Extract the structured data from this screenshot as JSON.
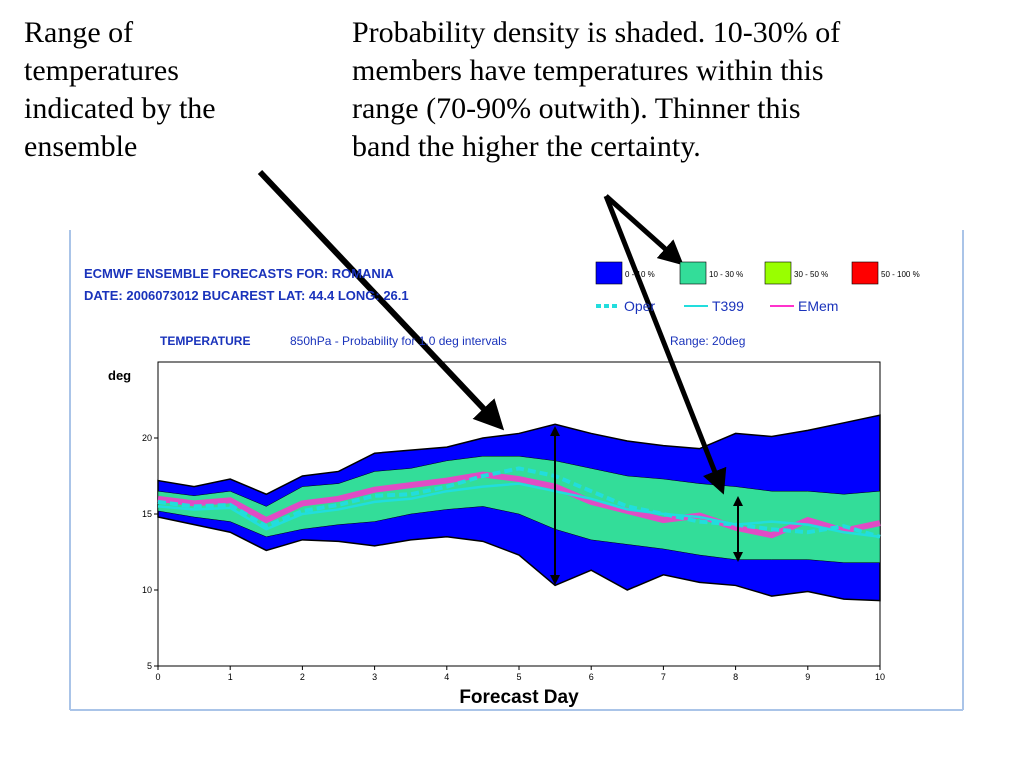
{
  "notes": {
    "left": [
      "Range of",
      "temperatures",
      "indicated by the",
      "ensemble"
    ],
    "right": [
      "Probability density is shaded. 10-30% of",
      "members have temperatures within this",
      "range (70-90% outwith). Thinner this",
      "band the higher the certainty."
    ]
  },
  "chart_data": {
    "type": "plume",
    "title": [
      "ECMWF ENSEMBLE FORECASTS FOR:  ROMANIA",
      "DATE: 2006073012  BUCAREST  LAT: 44.4  LONG: 26.1"
    ],
    "subtitle": [
      "TEMPERATURE",
      "850hPa - Probability for 1.0 deg intervals"
    ],
    "range_note": "Range: 20deg",
    "y_label": "deg",
    "x_label": "Forecast Day",
    "xlim": [
      0,
      10
    ],
    "xticks": [
      0,
      1,
      2,
      3,
      4,
      5,
      6,
      7,
      8,
      9,
      10
    ],
    "ylim": [
      5,
      25
    ],
    "yticks": [
      5,
      10,
      15,
      20
    ],
    "x": [
      0,
      0.5,
      1,
      1.5,
      2,
      2.5,
      3,
      3.5,
      4,
      4.5,
      5,
      5.5,
      6,
      6.5,
      7,
      7.5,
      8,
      8.5,
      9,
      9.5,
      10
    ],
    "bands": [
      {
        "name": "0 - 10 %",
        "color": "#0000ff",
        "upper": [
          17.2,
          16.8,
          17.3,
          16.3,
          17.5,
          17.8,
          19.0,
          19.2,
          19.4,
          20.0,
          20.3,
          20.9,
          20.3,
          19.8,
          19.5,
          19.3,
          20.3,
          20.1,
          20.5,
          21.0,
          21.5
        ],
        "lower": [
          14.8,
          14.3,
          13.8,
          12.6,
          13.3,
          13.2,
          12.9,
          13.3,
          13.5,
          13.2,
          12.3,
          10.3,
          11.3,
          10.0,
          11.0,
          10.5,
          10.3,
          9.6,
          9.9,
          9.4,
          9.3
        ]
      },
      {
        "name": "10 - 30 %",
        "color": "#33dd99",
        "upper": [
          16.5,
          16.2,
          16.5,
          15.5,
          16.8,
          17.0,
          17.8,
          18.0,
          18.5,
          18.8,
          18.8,
          18.5,
          18.0,
          17.5,
          17.3,
          17.0,
          16.8,
          16.5,
          16.5,
          16.3,
          16.5
        ],
        "lower": [
          15.2,
          14.8,
          14.5,
          13.5,
          14.0,
          14.3,
          14.5,
          15.0,
          15.3,
          15.5,
          15.0,
          14.0,
          13.3,
          13.0,
          12.7,
          12.3,
          12.0,
          12.0,
          12.0,
          11.8,
          11.8
        ]
      },
      {
        "name": "30 - 50 %",
        "color": "#99ff00"
      },
      {
        "name": "50 - 100 %",
        "color": "#ff0000"
      }
    ],
    "series": [
      {
        "name": "EMem",
        "color": "#ff33cc",
        "values": [
          16.0,
          15.7,
          15.9,
          14.6,
          15.7,
          16.0,
          16.6,
          16.9,
          17.2,
          17.6,
          17.3,
          16.8,
          15.8,
          15.2,
          14.6,
          14.9,
          14.1,
          13.6,
          14.6,
          13.9,
          14.4
        ]
      },
      {
        "name": "T399",
        "color": "#22dddd",
        "values": [
          15.5,
          15.3,
          15.4,
          14.0,
          15.0,
          15.3,
          15.8,
          16.0,
          16.5,
          16.8,
          17.0,
          16.5,
          16.0,
          15.3,
          15.0,
          14.8,
          14.3,
          14.5,
          14.3,
          13.8,
          13.5
        ]
      },
      {
        "name": "Oper",
        "color": "#22dddd",
        "dashed": true,
        "values": [
          15.8,
          15.5,
          15.6,
          14.2,
          15.2,
          15.6,
          16.2,
          16.3,
          16.8,
          17.5,
          18.0,
          17.5,
          16.5,
          15.5,
          15.0,
          14.5,
          14.3,
          14.0,
          13.8,
          14.2,
          13.5
        ]
      }
    ]
  }
}
